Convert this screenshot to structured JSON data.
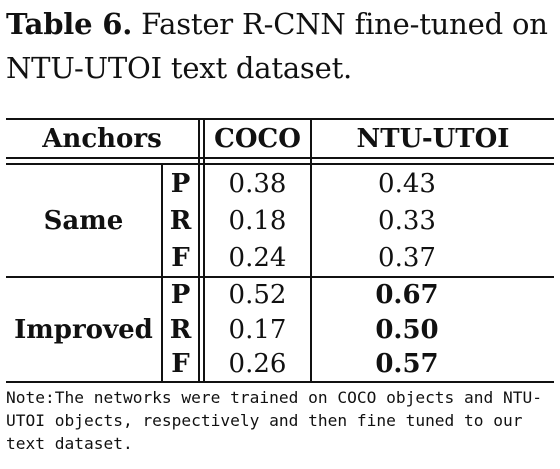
{
  "caption": {
    "label": "Table 6.",
    "text": "Faster R-CNN fine-tuned on NTU-UTOI text dataset."
  },
  "table": {
    "headers": {
      "anchors": "Anchors",
      "coco": "COCO",
      "ntu": "NTU-UTOI"
    },
    "groups": [
      {
        "name": "Same",
        "rows": [
          {
            "metric": "P",
            "coco": "0.38",
            "ntu": "0.43"
          },
          {
            "metric": "R",
            "coco": "0.18",
            "ntu": "0.33"
          },
          {
            "metric": "F",
            "coco": "0.24",
            "ntu": "0.37"
          }
        ]
      },
      {
        "name": "Improved",
        "rows": [
          {
            "metric": "P",
            "coco": "0.52",
            "ntu": "0.67"
          },
          {
            "metric": "R",
            "coco": "0.17",
            "ntu": "0.50"
          },
          {
            "metric": "F",
            "coco": "0.26",
            "ntu": "0.57"
          }
        ]
      }
    ]
  },
  "note": "Note:The networks were trained on COCO objects and NTU-UTOI objects, respectively and then fine tuned to our text dataset."
}
